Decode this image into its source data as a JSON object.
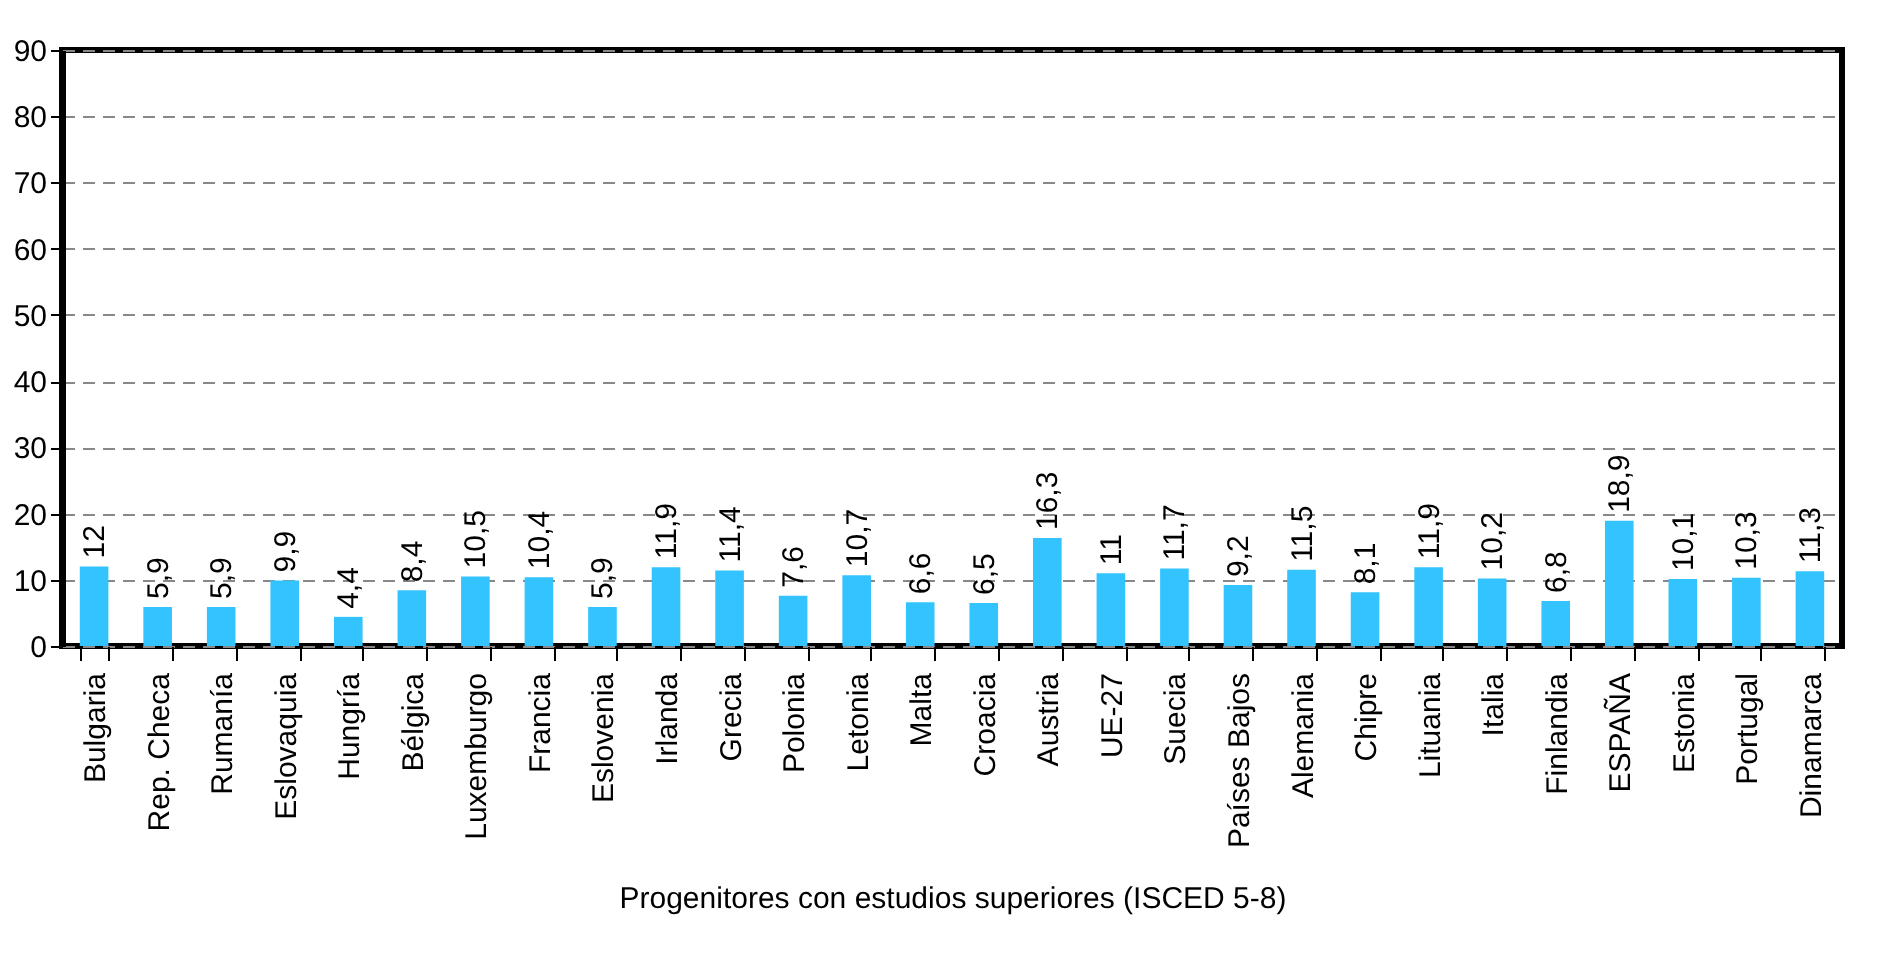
{
  "chart_data": {
    "type": "bar",
    "xlabel": "Progenitores con estudios superiores (ISCED 5-8)",
    "categories": [
      "Bulgaria",
      "Rep. Checa",
      "Rumanía",
      "Eslovaquia",
      "Hungría",
      "Bélgica",
      "Luxemburgo",
      "Francia",
      "Eslovenia",
      "Irlanda",
      "Grecia",
      "Polonia",
      "Letonia",
      "Malta",
      "Croacia",
      "Austria",
      "UE-27",
      "Suecia",
      "Países Bajos",
      "Alemania",
      "Chipre",
      "Lituania",
      "Italia",
      "Finlandia",
      "ESPAÑA",
      "Estonia",
      "Portugal",
      "Dinamarca"
    ],
    "values": [
      12,
      5.9,
      5.9,
      9.9,
      4.4,
      8.4,
      10.5,
      10.4,
      5.9,
      11.9,
      11.4,
      7.6,
      10.7,
      6.6,
      6.5,
      16.3,
      11,
      11.7,
      9.2,
      11.5,
      8.1,
      11.9,
      10.2,
      6.8,
      18.9,
      10.1,
      10.3,
      11.3
    ],
    "value_labels": [
      "12",
      "5,9",
      "5,9",
      "9,9",
      "4,4",
      "8,4",
      "10,5",
      "10,4",
      "5,9",
      "11,9",
      "11,4",
      "7,6",
      "10,7",
      "6,6",
      "6,5",
      "16,3",
      "11",
      "11,7",
      "9,2",
      "11,5",
      "8,1",
      "11,9",
      "10,2",
      "6,8",
      "18,9",
      "10,1",
      "10,3",
      "11,3"
    ],
    "color": "#33c3ff",
    "ylim": [
      0,
      90
    ],
    "yticks": [
      0,
      10,
      20,
      30,
      40,
      50,
      60,
      70,
      80,
      90
    ],
    "grid": "y"
  }
}
